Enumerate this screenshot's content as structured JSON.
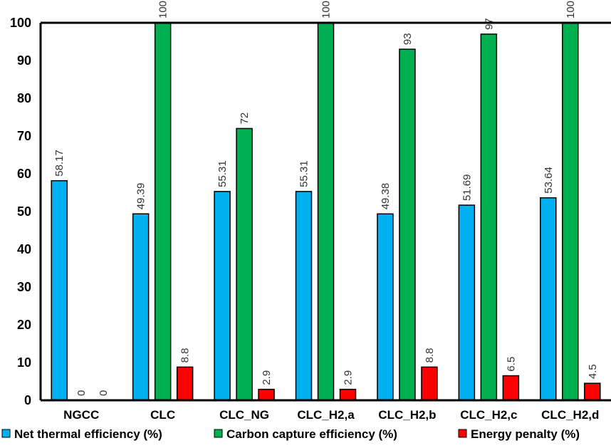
{
  "chart_data": {
    "type": "bar",
    "categories": [
      "NGCC",
      "CLC",
      "CLC_NG",
      "CLC_H2,a",
      "CLC_H2,b",
      "CLC_H2,c",
      "CLC_H2,d"
    ],
    "series": [
      {
        "name": "Net thermal efficiency (%)",
        "color": "#00b0f0",
        "values": [
          58.17,
          49.39,
          55.31,
          55.31,
          49.38,
          51.69,
          53.64
        ],
        "labels": [
          "58.17",
          "49.39",
          "55.31",
          "55.31",
          "49.38",
          "51.69",
          "53.64"
        ]
      },
      {
        "name": "Carbon capture efficiency (%)",
        "color": "#00b050",
        "values": [
          0,
          100,
          72,
          100,
          93,
          97,
          100
        ],
        "labels": [
          "0",
          "100",
          "72",
          "100",
          "93",
          "97",
          "100"
        ]
      },
      {
        "name": "Energy penalty (%)",
        "color": "#ff0000",
        "values": [
          0,
          8.8,
          2.9,
          2.9,
          8.8,
          6.5,
          4.5
        ],
        "labels": [
          "0",
          "8.8",
          "2.9",
          "2.9",
          "8.8",
          "6.5",
          "4.5"
        ]
      }
    ],
    "ylim": [
      0,
      100
    ],
    "yticks": [
      "0",
      "10",
      "20",
      "30",
      "40",
      "50",
      "60",
      "70",
      "80",
      "90",
      "100"
    ],
    "grid": false,
    "legend_position": "bottom"
  }
}
